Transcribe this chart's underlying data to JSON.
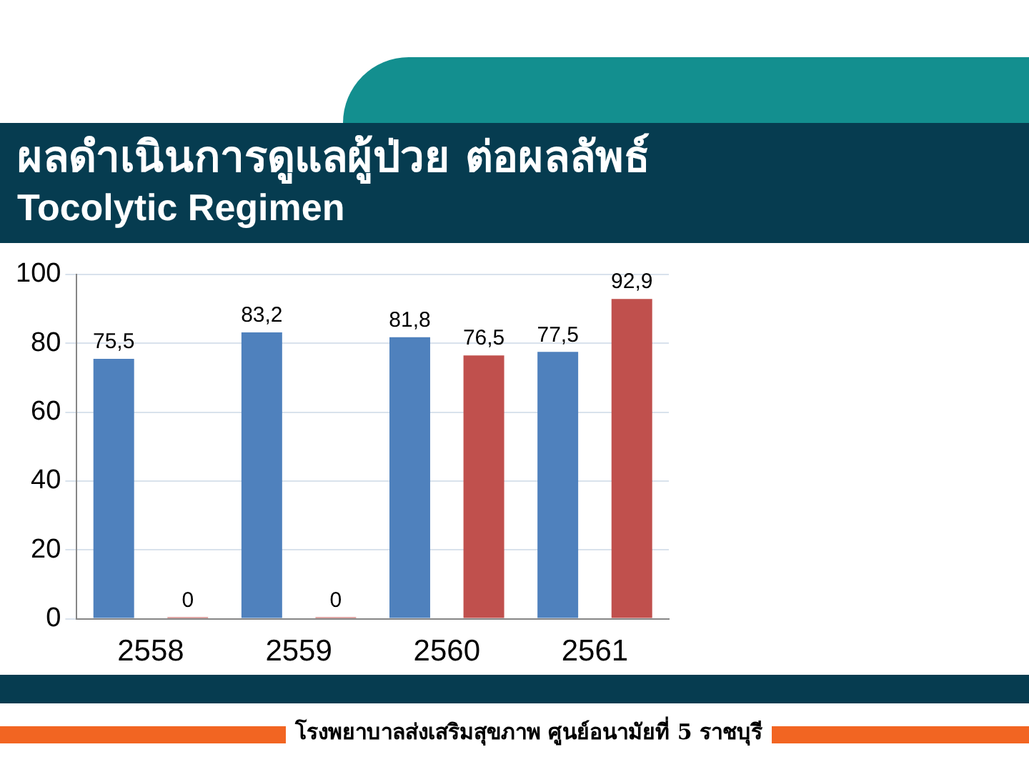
{
  "chart_data": {
    "type": "bar",
    "title": "ผลดำเนินการดูแลผู้ป่วย ต่อผลลัพธ์",
    "subtitle": "Tocolytic Regimen",
    "annotations": [
      "โรงพยาบาลส่งเสริมสุขภาพ ศูนย์อนามัยที่ 5 ราชบุรี"
    ],
    "categories": [
      "2558",
      "2559",
      "2560",
      "2561"
    ],
    "series": [
      {
        "color": "#4f81bd",
        "values": [
          75.5,
          83.2,
          81.8,
          77.5
        ],
        "value_labels": [
          "75,5",
          "83,2",
          "81,8",
          "77,5"
        ]
      },
      {
        "color": "#c0504d",
        "values": [
          0,
          0,
          76.5,
          92.9
        ],
        "value_labels": [
          "0",
          "0",
          "76,5",
          "92,9"
        ]
      }
    ],
    "ylim": [
      0,
      100
    ],
    "yticks": [
      0,
      20,
      40,
      60,
      80,
      100
    ],
    "grid": "y"
  }
}
